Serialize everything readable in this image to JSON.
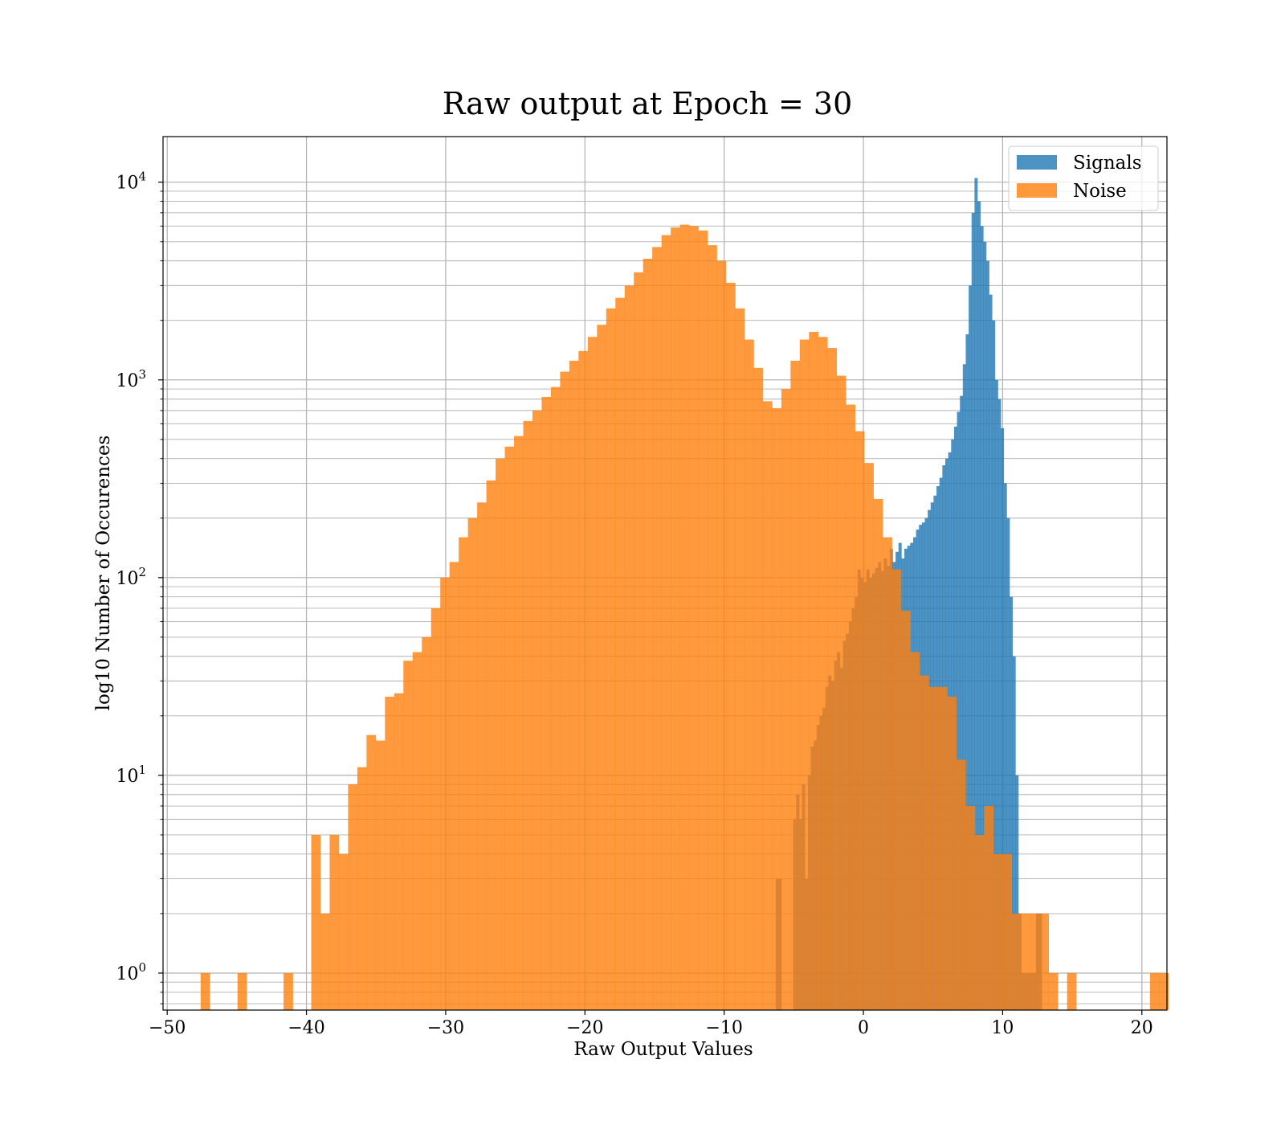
{
  "chart_data": {
    "type": "histogram",
    "title": "Raw output at Epoch = 30",
    "xlabel": "Raw Output Values",
    "ylabel": "log10 Number of Occurences",
    "xlim": [
      -50.3,
      21.8
    ],
    "ylim": [
      0.65,
      17000
    ],
    "yscale": "log",
    "grid": true,
    "legend_position": "upper right",
    "x_ticks": [
      -50,
      -40,
      -30,
      -20,
      -10,
      0,
      10,
      20
    ],
    "x_tick_labels": [
      "−50",
      "−40",
      "−30",
      "−20",
      "−10",
      "0",
      "10",
      "20"
    ],
    "y_ticks": [
      1,
      10,
      100,
      1000,
      10000
    ],
    "y_tick_labels": [
      {
        "base": "10",
        "exp": "0"
      },
      {
        "base": "10",
        "exp": "1"
      },
      {
        "base": "10",
        "exp": "2"
      },
      {
        "base": "10",
        "exp": "3"
      },
      {
        "base": "10",
        "exp": "4"
      }
    ],
    "series": [
      {
        "name": "Signals",
        "color": "#1f77b4",
        "alpha": 0.8,
        "bin_start": -6.3,
        "bin_width": 0.21,
        "counts": [
          3,
          3,
          0,
          0,
          0,
          0,
          6,
          8,
          6,
          9,
          3,
          10,
          14,
          15,
          18,
          20,
          22,
          28,
          32,
          30,
          38,
          42,
          35,
          48,
          52,
          60,
          70,
          80,
          110,
          100,
          95,
          110,
          100,
          105,
          112,
          120,
          108,
          125,
          115,
          140,
          120,
          135,
          150,
          125,
          140,
          145,
          150,
          160,
          175,
          185,
          190,
          200,
          220,
          240,
          260,
          290,
          320,
          370,
          400,
          430,
          500,
          580,
          690,
          830,
          1200,
          1700,
          3000,
          7000,
          10500,
          8000,
          6000,
          5000,
          4000,
          2700,
          2000,
          1000,
          800,
          570,
          300,
          200,
          80,
          40,
          10,
          2,
          1,
          1,
          1,
          1,
          1,
          2,
          2
        ]
      },
      {
        "name": "Noise",
        "color": "#ff7f0e",
        "alpha": 0.8,
        "bin_start": -47.6,
        "bin_width": 0.662,
        "counts": [
          1,
          0,
          0,
          0,
          1,
          0,
          0,
          0,
          0,
          1,
          0,
          0,
          5,
          2,
          5,
          4,
          9,
          11,
          16,
          15,
          25,
          26,
          38,
          42,
          50,
          70,
          100,
          120,
          160,
          200,
          240,
          310,
          400,
          460,
          520,
          620,
          700,
          820,
          920,
          1100,
          1250,
          1400,
          1650,
          1900,
          2300,
          2600,
          3000,
          3500,
          4100,
          4700,
          5400,
          5900,
          6100,
          6000,
          5700,
          4800,
          4000,
          3100,
          2300,
          1600,
          1150,
          780,
          720,
          900,
          1250,
          1600,
          1750,
          1650,
          1450,
          1050,
          750,
          550,
          380,
          250,
          160,
          110,
          68,
          42,
          32,
          28,
          28,
          25,
          12,
          7,
          5,
          7,
          4,
          4,
          2,
          2,
          2,
          2,
          1,
          0,
          1,
          0,
          0,
          0,
          0,
          0,
          0,
          0,
          0,
          1,
          1,
          0,
          0
        ]
      }
    ]
  }
}
